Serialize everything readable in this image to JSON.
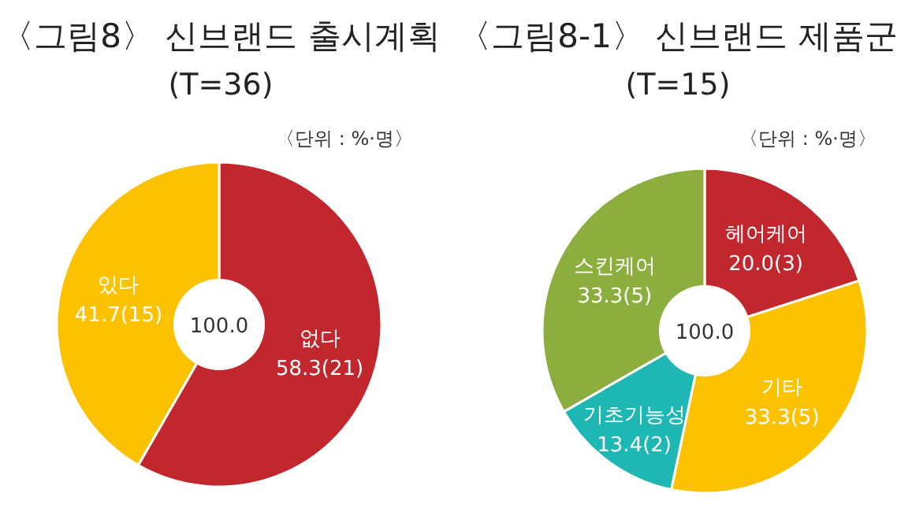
{
  "chart_data": [
    {
      "type": "donut",
      "title": "〈그림8〉 신브랜드 출시계획",
      "subtitle": "(T=36)",
      "annotations": [
        "〈단위 : %·명〉",
        "100.0"
      ],
      "categories": [
        "없다",
        "있다"
      ],
      "values": [
        58.3,
        41.7
      ],
      "value_labels": [
        "58.3(21)",
        "41.7(15)"
      ],
      "colors": [
        "#c1272d",
        "#fcc200"
      ]
    },
    {
      "type": "donut",
      "title": "〈그림8-1〉 신브랜드 제품군",
      "subtitle": "(T=15)",
      "annotations": [
        "〈단위 : %·명〉",
        "100.0"
      ],
      "categories": [
        "헤어케어",
        "기타",
        "기초기능성",
        "스킨케어"
      ],
      "values": [
        20.0,
        33.3,
        13.4,
        33.3
      ],
      "value_labels": [
        "20.0(3)",
        "33.3(5)",
        "13.4(2)",
        "33.3(5)"
      ],
      "colors": [
        "#c1272d",
        "#fcc200",
        "#1fb7b3",
        "#8cae3e"
      ]
    }
  ]
}
